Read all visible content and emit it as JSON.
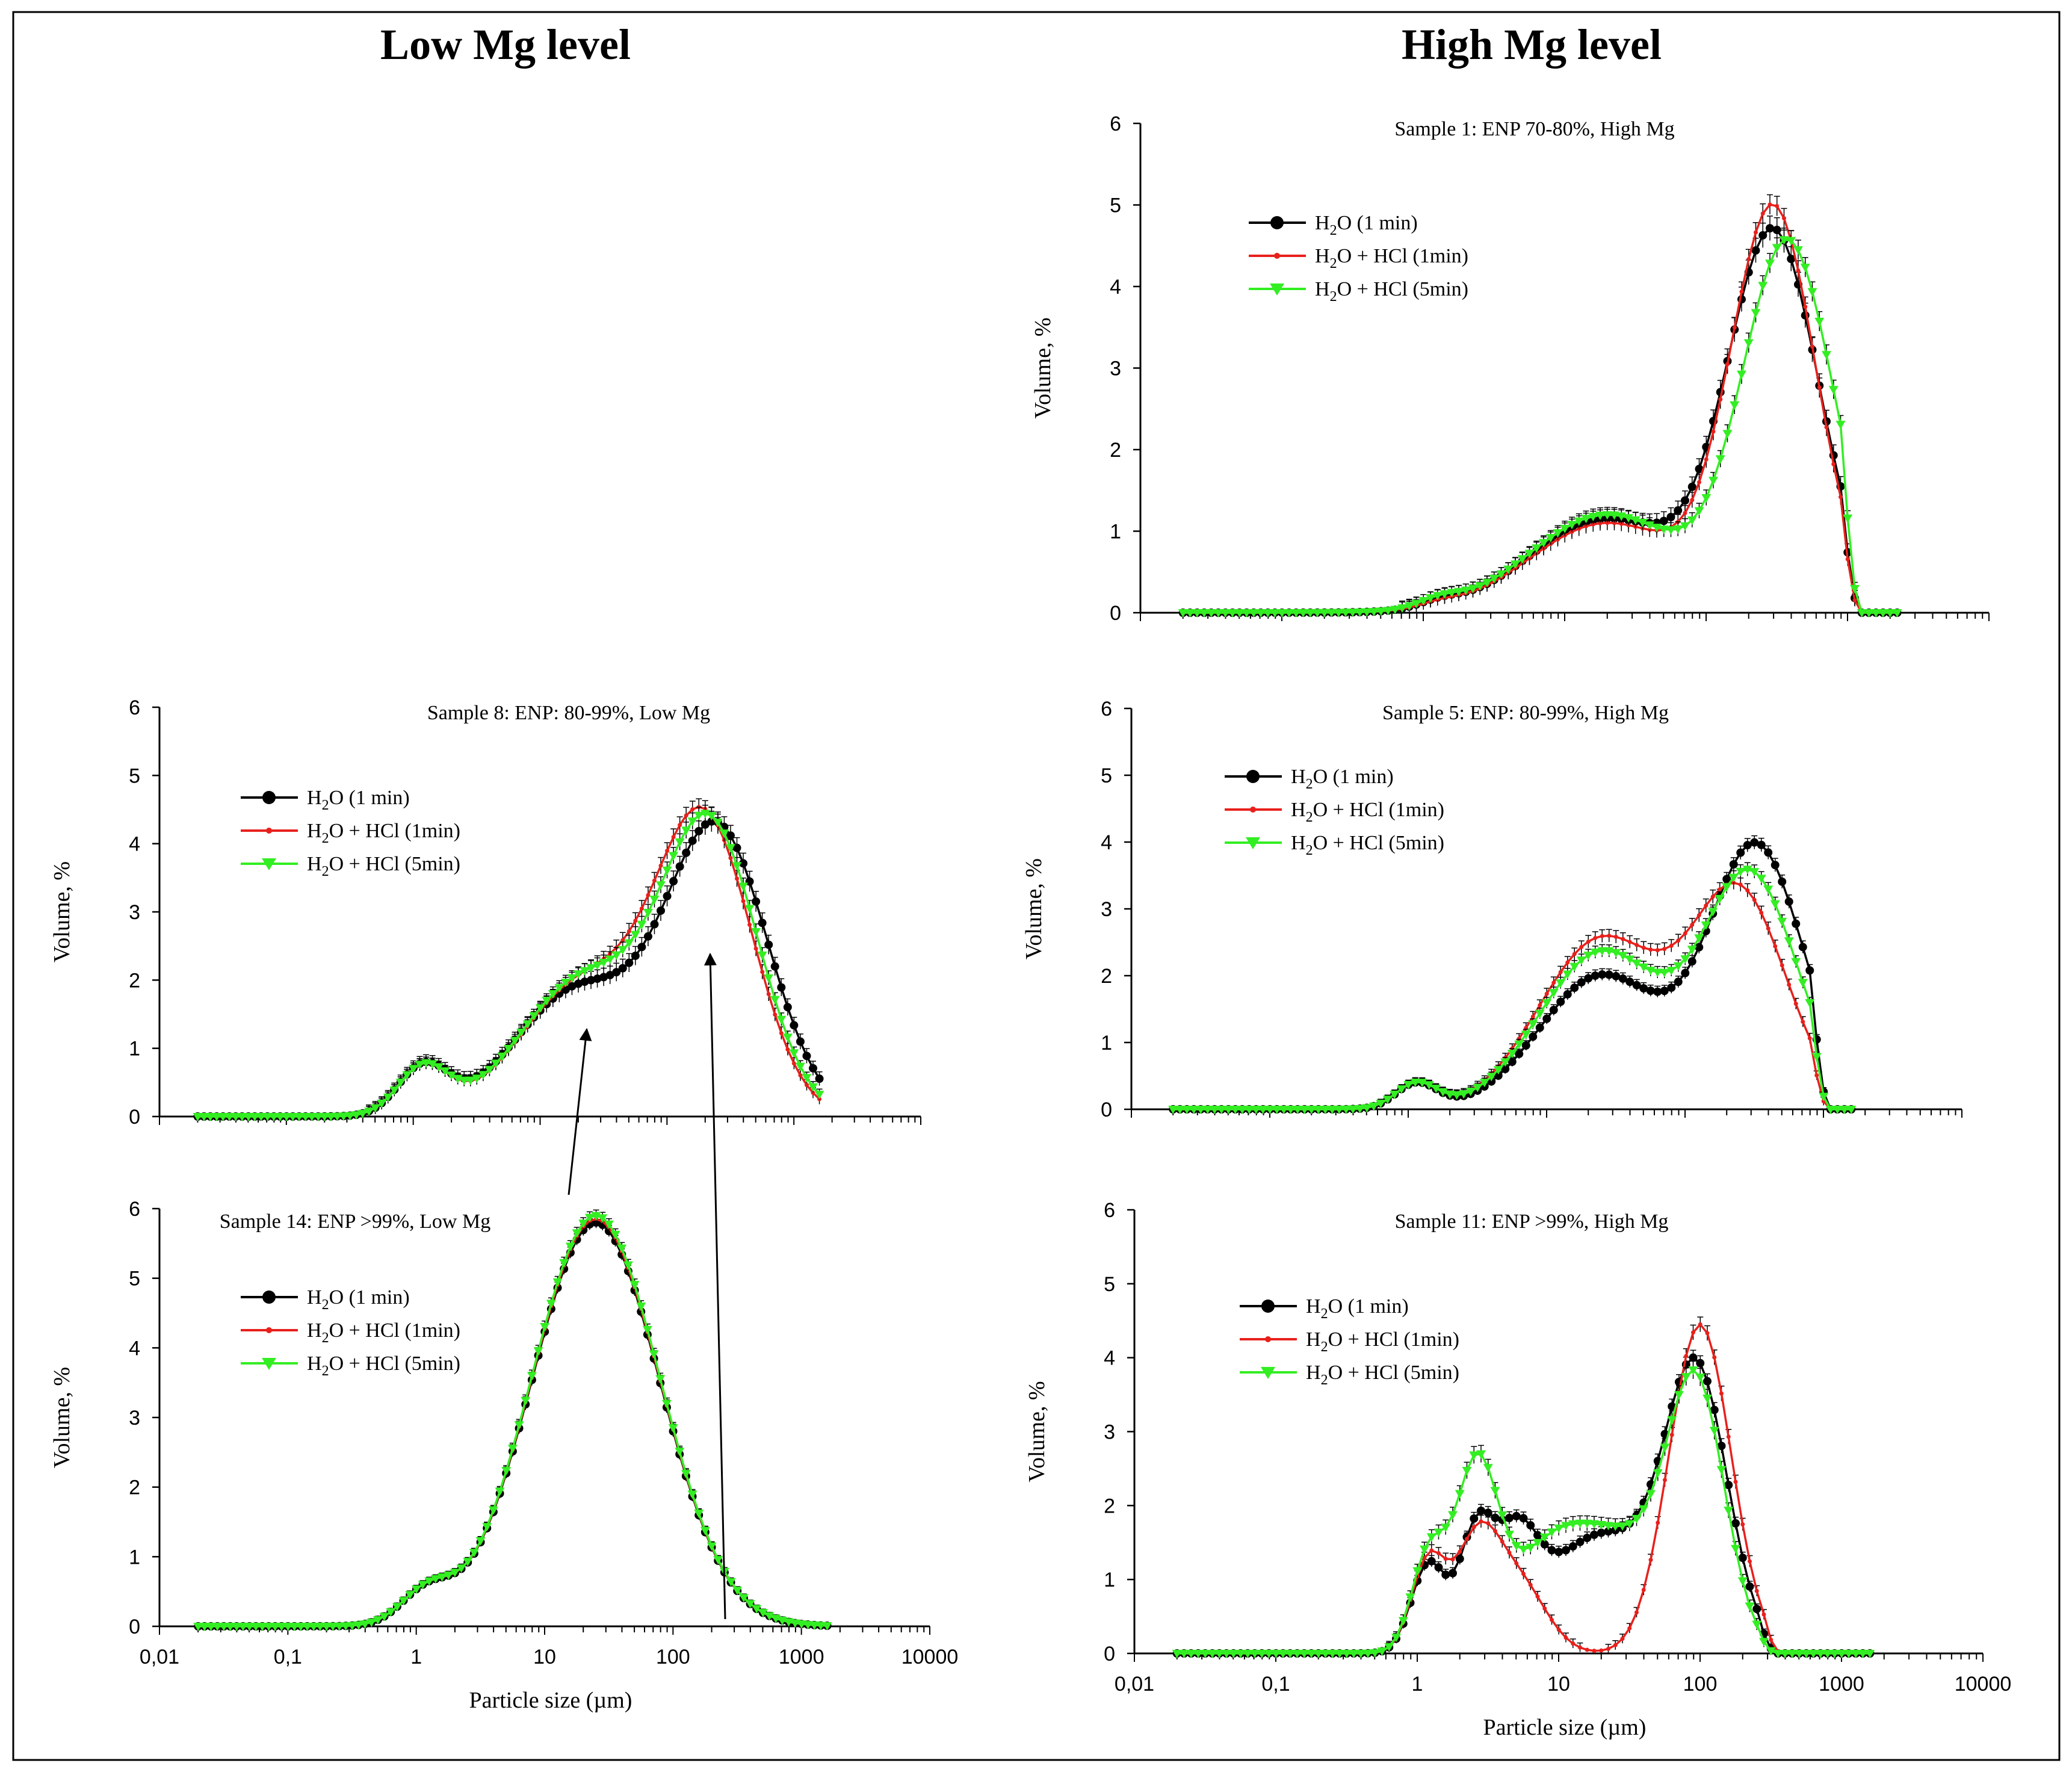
{
  "figure": {
    "left_heading": "Low Mg level",
    "right_heading": "High Mg level"
  },
  "chart_data": [
    {
      "type": "line",
      "title": "Sample 8: ENP: 80-99%, Low Mg",
      "xlabel": "Particle size (µm)",
      "ylabel": "Volume, %",
      "xscale": "log",
      "xlim": [
        0.01,
        10000
      ],
      "ylim": [
        0,
        6
      ],
      "yticks": [
        0,
        1,
        2,
        3,
        4,
        5,
        6
      ],
      "show_xtick_labels": false,
      "show_xlabel": false,
      "legend_position": "upper-left",
      "series": [
        {
          "name": "H2O (1 min)",
          "label_main": "H",
          "label_sub": "2",
          "label_rest": "O (1 min)",
          "color": "#000000",
          "marker": "circle",
          "peaks": [
            [
              1.2,
              0.2,
              0.7
            ],
            [
              20,
              0.5,
              1.85
            ],
            [
              250,
              0.4,
              4.15
            ]
          ],
          "xmin": 0.02,
          "xmax": 1700,
          "err": 0.15
        },
        {
          "name": "H2O + HCl (1min)",
          "label_main": "H",
          "label_sub": "2",
          "label_rest": "O + HCl (1min)",
          "color": "#e8201c",
          "marker": "dot",
          "peaks": [
            [
              1.2,
              0.2,
              0.7
            ],
            [
              22,
              0.5,
              1.95
            ],
            [
              200,
              0.38,
              4.2
            ]
          ],
          "xmin": 0.02,
          "xmax": 1700,
          "err": 0.12
        },
        {
          "name": "H2O + HCl (5min)",
          "label_main": "H",
          "label_sub": "2",
          "label_rest": "O + HCl (5min)",
          "color": "#33ee22",
          "marker": "triangle",
          "peaks": [
            [
              1.2,
              0.2,
              0.7
            ],
            [
              22,
              0.5,
              2.0
            ],
            [
              220,
              0.38,
              4.15
            ]
          ],
          "xmin": 0.02,
          "xmax": 1700,
          "err": 0.12
        }
      ]
    },
    {
      "type": "line",
      "title": "Sample 14: ENP >99%, Low Mg",
      "xlabel": "Particle size (µm)",
      "ylabel": "Volume, %",
      "xscale": "log",
      "xlim": [
        0.01,
        10000
      ],
      "ylim": [
        0,
        6
      ],
      "yticks": [
        0,
        1,
        2,
        3,
        4,
        5,
        6
      ],
      "xticks": [
        0.01,
        0.1,
        1,
        10,
        100,
        1000,
        10000
      ],
      "xtick_labels": [
        "0,01",
        "0,1",
        "1",
        "10",
        "100",
        "1000",
        "10000"
      ],
      "show_xtick_labels": true,
      "show_xlabel": true,
      "legend_position": "center-left",
      "series": [
        {
          "name": "H2O (1 min)",
          "label_main": "H",
          "label_sub": "2",
          "label_rest": "O (1 min)",
          "color": "#000000",
          "marker": "circle",
          "peaks": [
            [
              1.2,
              0.2,
              0.45
            ],
            [
              25,
              0.5,
              5.8
            ]
          ],
          "xmin": 0.02,
          "xmax": 1700,
          "err": 0.08
        },
        {
          "name": "H2O + HCl (1min)",
          "label_main": "H",
          "label_sub": "2",
          "label_rest": "O + HCl (1min)",
          "color": "#e8201c",
          "marker": "dot",
          "peaks": [
            [
              1.2,
              0.2,
              0.45
            ],
            [
              25,
              0.5,
              5.85
            ]
          ],
          "xmin": 0.02,
          "xmax": 1700,
          "err": 0.08
        },
        {
          "name": "H2O + HCl (5min)",
          "label_main": "H",
          "label_sub": "2",
          "label_rest": "O + HCl (5min)",
          "color": "#33ee22",
          "marker": "triangle",
          "peaks": [
            [
              1.2,
              0.2,
              0.45
            ],
            [
              25,
              0.5,
              5.9
            ]
          ],
          "xmin": 0.02,
          "xmax": 1700,
          "err": 0.08
        }
      ]
    },
    {
      "type": "line",
      "title": "Sample 1: ENP 70-80%, High Mg",
      "xlabel": "Particle size (µm)",
      "ylabel": "Volume, %",
      "xscale": "log",
      "xlim": [
        0.01,
        10000
      ],
      "ylim": [
        0,
        6
      ],
      "yticks": [
        0,
        1,
        2,
        3,
        4,
        5,
        6
      ],
      "show_xtick_labels": false,
      "show_xlabel": false,
      "legend_position": "upper-left",
      "series": [
        {
          "name": "H2O (1 min)",
          "label_main": "H",
          "label_sub": "2",
          "label_rest": "O (1 min)",
          "color": "#000000",
          "marker": "circle",
          "peaks": [
            [
              1.3,
              0.15,
              0.08
            ],
            [
              20,
              0.55,
              1.15
            ],
            [
              300,
              0.32,
              4.6
            ]
          ],
          "xmin": 0.02,
          "xmax": 2500,
          "cutoff": 900,
          "err": 0.15
        },
        {
          "name": "H2O + HCl (1min)",
          "label_main": "H",
          "label_sub": "2",
          "label_rest": "O + HCl (1min)",
          "color": "#e8201c",
          "marker": "dot",
          "peaks": [
            [
              1.3,
              0.15,
              0.06
            ],
            [
              20,
              0.55,
              1.1
            ],
            [
              300,
              0.3,
              4.9
            ]
          ],
          "xmin": 0.02,
          "xmax": 2500,
          "cutoff": 900,
          "err": 0.12
        },
        {
          "name": "H2O + HCl (5min)",
          "label_main": "H",
          "label_sub": "2",
          "label_rest": "O + HCl (5min)",
          "color": "#33ee22",
          "marker": "triangle",
          "peaks": [
            [
              1.3,
              0.15,
              0.1
            ],
            [
              20,
              0.55,
              1.2
            ],
            [
              380,
              0.32,
              4.5
            ]
          ],
          "xmin": 0.02,
          "xmax": 2500,
          "cutoff": 900,
          "err": 0.12
        }
      ]
    },
    {
      "type": "line",
      "title": "Sample 5: ENP: 80-99%, High Mg",
      "xlabel": "Particle size (µm)",
      "ylabel": "Volume, %",
      "xscale": "log",
      "xlim": [
        0.01,
        10000
      ],
      "ylim": [
        0,
        6
      ],
      "yticks": [
        0,
        1,
        2,
        3,
        4,
        5,
        6
      ],
      "show_xtick_labels": false,
      "show_xlabel": false,
      "legend_position": "upper-left",
      "series": [
        {
          "name": "H2O (1 min)",
          "label_main": "H",
          "label_sub": "2",
          "label_rest": "O (1 min)",
          "color": "#000000",
          "marker": "circle",
          "peaks": [
            [
              1.15,
              0.15,
              0.38
            ],
            [
              25,
              0.45,
              2.0
            ],
            [
              330,
              0.34,
              3.9
            ]
          ],
          "xmin": 0.02,
          "xmax": 1700,
          "cutoff": 800,
          "err": 0.1
        },
        {
          "name": "H2O + HCl (1min)",
          "label_main": "H",
          "label_sub": "2",
          "label_rest": "O + HCl (1min)",
          "color": "#e8201c",
          "marker": "dot",
          "peaks": [
            [
              1.15,
              0.15,
              0.38
            ],
            [
              25,
              0.45,
              2.55
            ],
            [
              250,
              0.34,
              3.15
            ]
          ],
          "xmin": 0.02,
          "xmax": 1700,
          "cutoff": 800,
          "err": 0.1
        },
        {
          "name": "H2O + HCl (5min)",
          "label_main": "H",
          "label_sub": "2",
          "label_rest": "O + HCl (5min)",
          "color": "#33ee22",
          "marker": "triangle",
          "peaks": [
            [
              1.15,
              0.15,
              0.38
            ],
            [
              25,
              0.45,
              2.35
            ],
            [
              300,
              0.34,
              3.45
            ]
          ],
          "xmin": 0.02,
          "xmax": 1700,
          "cutoff": 800,
          "err": 0.1
        }
      ]
    },
    {
      "type": "line",
      "title": "Sample 11: ENP >99%, High Mg",
      "xlabel": "Particle size (µm)",
      "ylabel": "Volume, %",
      "xscale": "log",
      "xlim": [
        0.01,
        10000
      ],
      "ylim": [
        0,
        6
      ],
      "yticks": [
        0,
        1,
        2,
        3,
        4,
        5,
        6
      ],
      "xticks": [
        0.01,
        0.1,
        1,
        10,
        100,
        1000,
        10000
      ],
      "xtick_labels": [
        "0,01",
        "0,1",
        "1",
        "10",
        "100",
        "1000",
        "10000"
      ],
      "show_xtick_labels": true,
      "show_xlabel": true,
      "legend_position": "upper-left",
      "series": [
        {
          "name": "H2O (1 min)",
          "label_main": "H",
          "label_sub": "2",
          "label_rest": "O (1 min)",
          "color": "#000000",
          "marker": "circle",
          "peaks": [
            [
              1.2,
              0.12,
              1.2
            ],
            [
              2.6,
              0.12,
              1.5
            ],
            [
              5,
              0.15,
              1.25
            ],
            [
              20,
              0.4,
              1.6
            ],
            [
              95,
              0.22,
              3.6
            ]
          ],
          "xmin": 0.02,
          "xmax": 1700,
          "cutoff": 260,
          "err": 0.1
        },
        {
          "name": "H2O + HCl (1min)",
          "label_main": "H",
          "label_sub": "2",
          "label_rest": "O + HCl (1min)",
          "color": "#e8201c",
          "marker": "dot",
          "peaks": [
            [
              1.2,
              0.12,
              1.25
            ],
            [
              2.6,
              0.15,
              1.35
            ],
            [
              5,
              0.2,
              1.0
            ],
            [
              100,
              0.22,
              4.45
            ]
          ],
          "xmin": 0.02,
          "xmax": 1700,
          "cutoff": 280,
          "err": 0.1
        },
        {
          "name": "H2O + HCl (5min)",
          "label_main": "H",
          "label_sub": "2",
          "label_rest": "O + HCl (5min)",
          "color": "#33ee22",
          "marker": "triangle",
          "peaks": [
            [
              1.2,
              0.12,
              1.3
            ],
            [
              2.6,
              0.15,
              2.35
            ],
            [
              8,
              0.3,
              1.2
            ],
            [
              30,
              0.35,
              1.4
            ],
            [
              95,
              0.2,
              3.3
            ]
          ],
          "xmin": 0.02,
          "xmax": 1700,
          "cutoff": 260,
          "err": 0.12
        }
      ]
    }
  ]
}
